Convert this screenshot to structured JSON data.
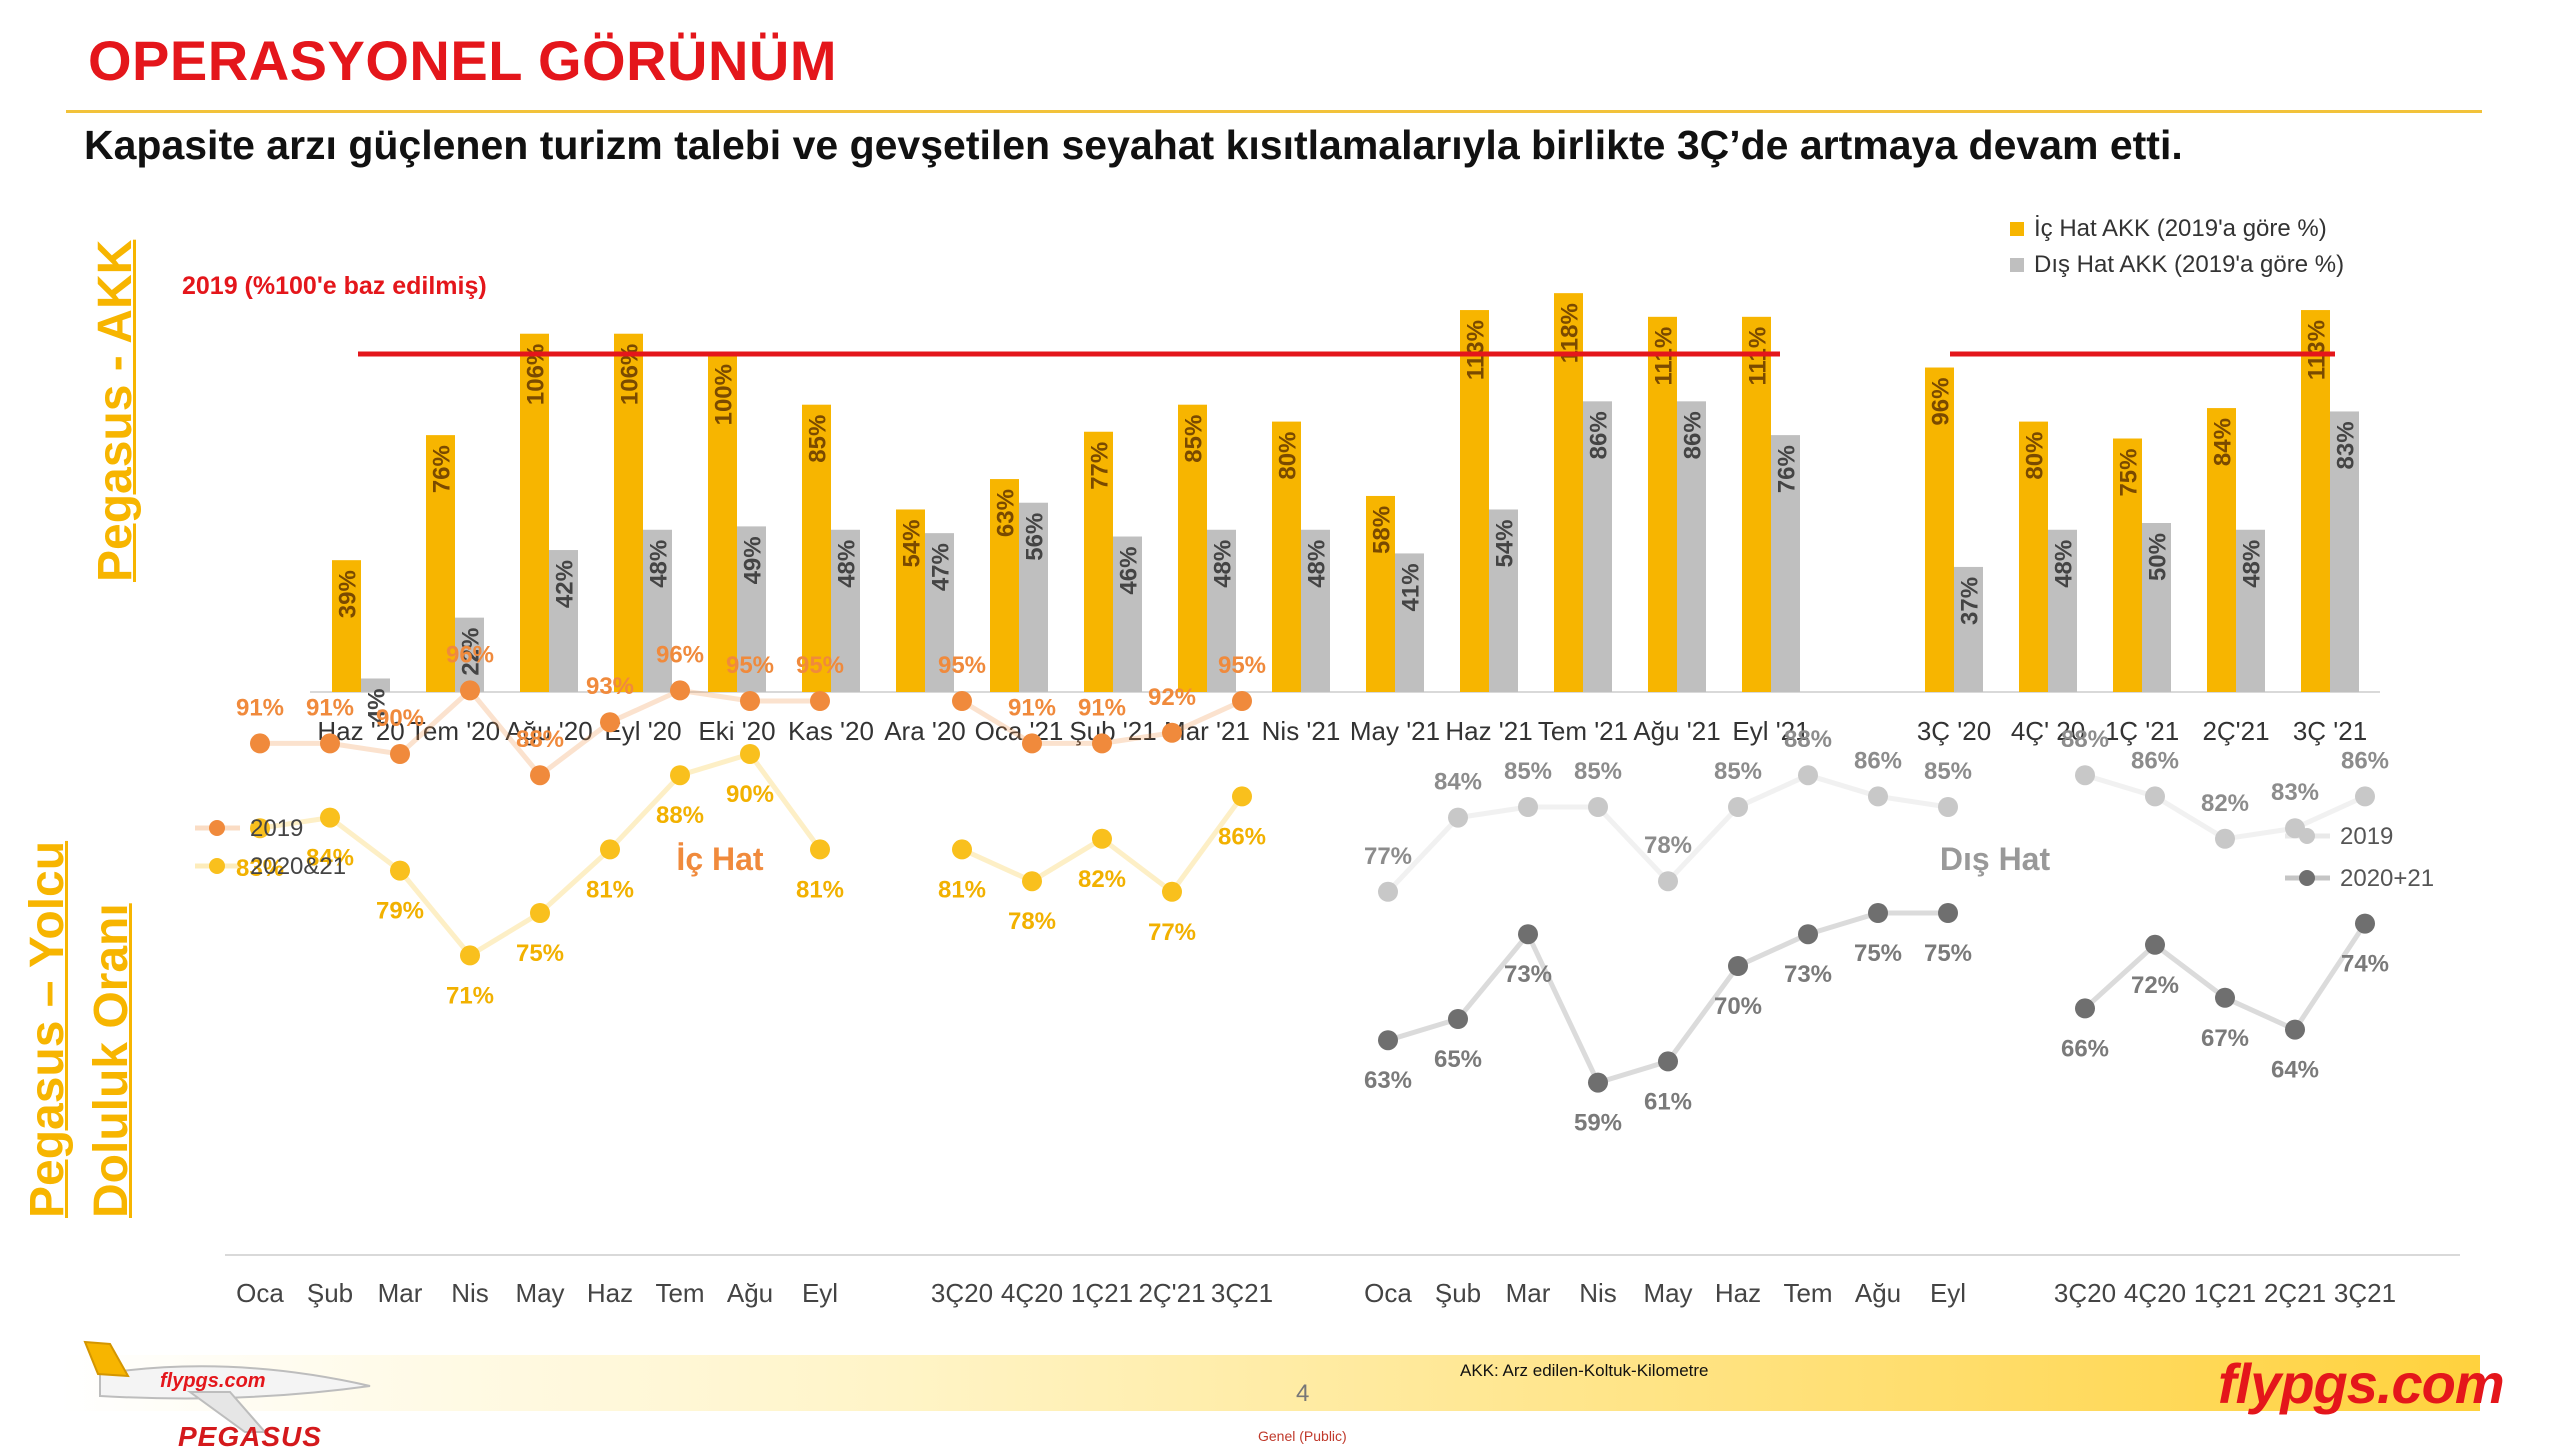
{
  "header": {
    "title": "OPERASYONEL GÖRÜNÜM",
    "subtitle": "Kapasite arzı güçlenen turizm talebi ve gevşetilen seyahat kısıtlamalarıyla birlikte 3Ç’de artmaya devam etti."
  },
  "side_labels": {
    "akk": "Pegasus - AKK",
    "load_line1": "Pegasus – Yolcu",
    "load_line2": "Doluluk Oranı"
  },
  "colors": {
    "domestic": "#f7b500",
    "international": "#bfbfbf",
    "baseline": "#e4161b",
    "domestic_2019": "#f08a3c",
    "domestic_2020": "#f9c01d",
    "intl_2019": "#c8c8c8",
    "intl_2020": "#6f6f6f"
  },
  "chart_data": [
    {
      "type": "bar",
      "title": "Pegasus - AKK",
      "baseline_label": "2019 (%100'e baz edilmiş)",
      "baseline_value": 100,
      "ylim": [
        0,
        125
      ],
      "legend": [
        "İç Hat AKK (2019'a göre %)",
        "Dış Hat AKK (2019'a göre %)"
      ],
      "legend_position": "top-right",
      "groups": [
        {
          "categories": [
            "Haz '20",
            "Tem '20",
            "Ağu '20",
            "Eyl '20",
            "Eki '20",
            "Kas '20",
            "Ara '20",
            "Oca '21",
            "Şub '21",
            "Mar '21",
            "Nis '21",
            "May '21",
            "Haz '21",
            "Tem '21",
            "Ağu '21",
            "Eyl '21"
          ],
          "series": [
            {
              "name": "İç Hat AKK (2019'a göre %)",
              "values": [
                39,
                76,
                106,
                106,
                100,
                85,
                54,
                63,
                77,
                85,
                80,
                58,
                113,
                118,
                111,
                111
              ]
            },
            {
              "name": "Dış Hat AKK (2019'a göre %)",
              "values": [
                4,
                22,
                42,
                48,
                49,
                48,
                47,
                56,
                46,
                48,
                48,
                41,
                54,
                86,
                86,
                76
              ]
            }
          ]
        },
        {
          "categories": [
            "3Ç '20",
            "4Ç' 20",
            "1Ç '21",
            "2Ç'21",
            "3Ç '21"
          ],
          "series": [
            {
              "name": "İç Hat AKK (2019'a göre %)",
              "values": [
                96,
                80,
                75,
                84,
                113
              ]
            },
            {
              "name": "Dış Hat AKK (2019'a göre %)",
              "values": [
                37,
                48,
                50,
                48,
                83
              ]
            }
          ]
        }
      ]
    },
    {
      "type": "line",
      "title": "İç Hat",
      "legend": [
        "2019",
        "2020&21"
      ],
      "legend_position": "top-left",
      "ylim": [
        55,
        100
      ],
      "groups": [
        {
          "categories": [
            "Oca",
            "Şub",
            "Mar",
            "Nis",
            "May",
            "Haz",
            "Tem",
            "Ağu",
            "Eyl"
          ],
          "series": [
            {
              "name": "2019",
              "values": [
                91,
                91,
                90,
                96,
                88,
                93,
                96,
                95,
                95
              ]
            },
            {
              "name": "2020&21",
              "values": [
                83,
                84,
                79,
                71,
                75,
                81,
                88,
                90,
                81
              ]
            }
          ]
        },
        {
          "categories": [
            "3Ç20",
            "4Ç20",
            "1Ç21",
            "2Ç'21",
            "3Ç21"
          ],
          "series": [
            {
              "name": "2019",
              "values": [
                95,
                91,
                91,
                92,
                95
              ]
            },
            {
              "name": "2020&21",
              "values": [
                81,
                78,
                82,
                77,
                86
              ]
            }
          ]
        }
      ]
    },
    {
      "type": "line",
      "title": "Dış Hat",
      "legend": [
        "2019",
        "2020+21"
      ],
      "legend_position": "top-right",
      "ylim": [
        55,
        100
      ],
      "groups": [
        {
          "categories": [
            "Oca",
            "Şub",
            "Mar",
            "Nis",
            "May",
            "Haz",
            "Tem",
            "Ağu",
            "Eyl"
          ],
          "series": [
            {
              "name": "2019",
              "values": [
                77,
                84,
                85,
                85,
                78,
                85,
                88,
                86,
                85
              ]
            },
            {
              "name": "2020+21",
              "values": [
                63,
                65,
                73,
                59,
                61,
                70,
                73,
                75,
                75
              ]
            }
          ]
        },
        {
          "categories": [
            "3Ç20",
            "4Ç20",
            "1Ç21",
            "2Ç21",
            "3Ç21"
          ],
          "series": [
            {
              "name": "2019",
              "values": [
                88,
                86,
                82,
                83,
                86
              ]
            },
            {
              "name": "2020+21",
              "values": [
                66,
                72,
                67,
                64,
                74
              ]
            }
          ]
        }
      ]
    }
  ],
  "footer": {
    "note": "AKK: Arz edilen-Koltuk-Kilometre",
    "page_number": "4",
    "brand": "flypgs.com",
    "logo_text": "PEGASUS",
    "classification": "Genel (Public)"
  }
}
